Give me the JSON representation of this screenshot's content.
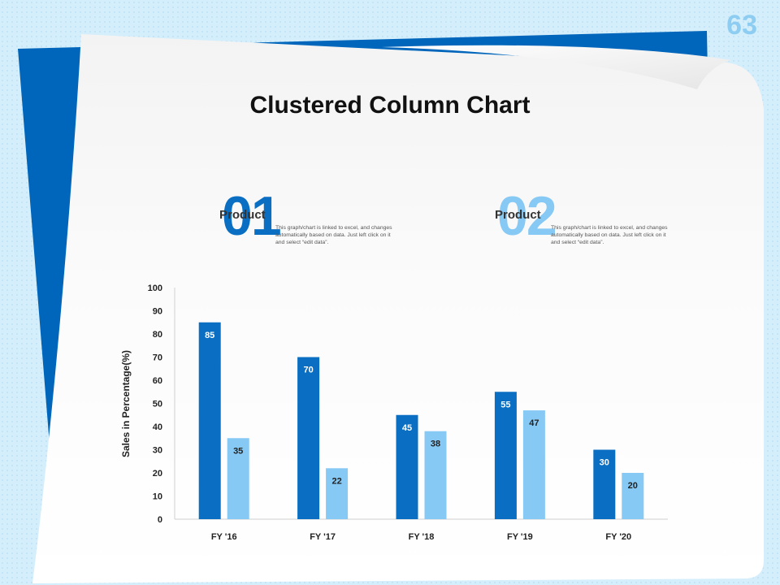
{
  "slide_number": "63",
  "title": "Clustered Column Chart",
  "products": [
    {
      "number": "01",
      "label": "Product",
      "color": "#0a6fc2",
      "description": "This graph/chart is linked to excel, and changes automatically based on data. Just left click on it and select “edit data”."
    },
    {
      "number": "02",
      "label": "Product",
      "color": "#86c9f5",
      "description": "This graph/chart is linked to excel, and changes automatically based on data. Just left click on it and select “edit data”."
    }
  ],
  "colors": {
    "dark": "#0a6fc2",
    "light": "#86c9f5",
    "accent_panel": "#0066bb"
  },
  "chart_data": {
    "type": "bar",
    "categories": [
      "FY '16",
      "FY '17",
      "FY '18",
      "FY '19",
      "FY '20"
    ],
    "series": [
      {
        "values": [
          85,
          70,
          45,
          55,
          30
        ],
        "color": "#0a6fc2"
      },
      {
        "values": [
          35,
          22,
          38,
          47,
          20
        ],
        "color": "#86c9f5"
      }
    ],
    "ylabel": "Sales in Percentage(%)",
    "xlabel": "",
    "ylim": [
      0,
      100
    ],
    "yticks": [
      0,
      10,
      20,
      30,
      40,
      50,
      60,
      70,
      80,
      90,
      100
    ],
    "grid": false,
    "data_labels": true
  }
}
